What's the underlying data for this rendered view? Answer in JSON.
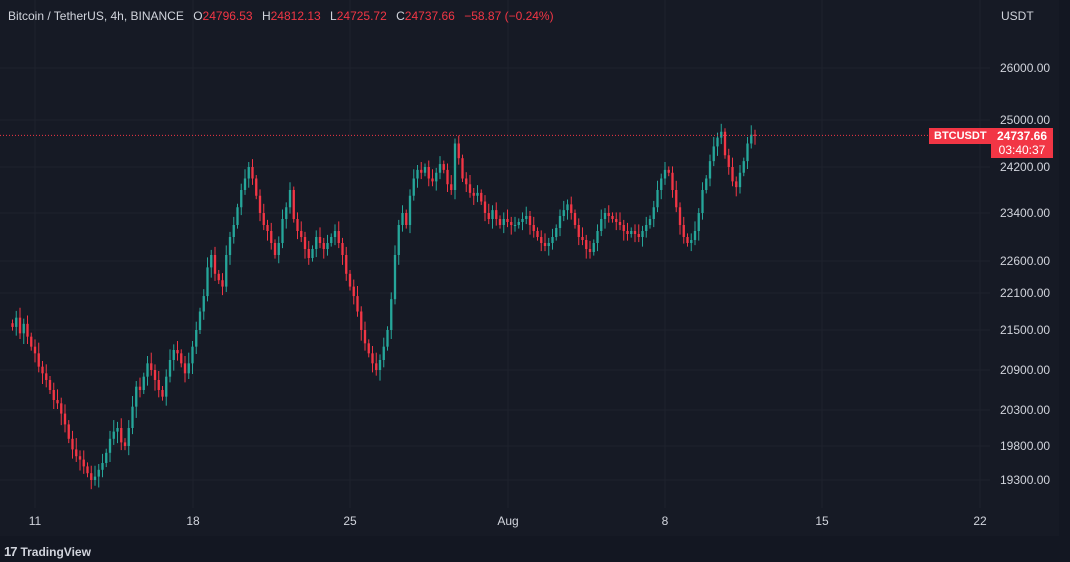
{
  "header": {
    "symbol": "Bitcoin / TetherUS, 4h, BINANCE",
    "open_label": "O",
    "open": "24796.53",
    "high_label": "H",
    "high": "24812.13",
    "low_label": "L",
    "low": "24725.72",
    "close_label": "C",
    "close": "24737.66",
    "change": "−58.87 (−0.24%)"
  },
  "axis": {
    "unit": "USDT",
    "y_ticks": [
      "26000.00",
      "25000.00",
      "24200.00",
      "23400.00",
      "22600.00",
      "22100.00",
      "21500.00",
      "20900.00",
      "20300.00",
      "19800.00",
      "19300.00"
    ],
    "x_ticks": [
      "11",
      "18",
      "25",
      "Aug",
      "8",
      "15",
      "22"
    ]
  },
  "price_badge": {
    "symbol": "BTCUSDT",
    "price": "24737.66",
    "countdown": "03:40:37"
  },
  "footer": {
    "logo": "17",
    "brand": "TradingView"
  },
  "colors": {
    "up": "#26a69a",
    "down": "#f23645",
    "background": "#161a25",
    "text": "#d1d4dc"
  },
  "chart_data": {
    "type": "candlestick",
    "title": "Bitcoin / TetherUS, 4h, BINANCE",
    "y_unit": "USDT",
    "last_price": 24737.66,
    "ylim": [
      18900,
      26900
    ],
    "x_tick_positions": {
      "11": 6,
      "18": 48,
      "25": 90,
      "Aug": 132,
      "8": 174,
      "15": 216,
      "22": 258
    },
    "close_series": [
      21550,
      21700,
      21450,
      21600,
      21400,
      21250,
      21150,
      20950,
      20850,
      20750,
      20600,
      20450,
      20400,
      20250,
      20100,
      19900,
      19750,
      19650,
      19600,
      19500,
      19400,
      19300,
      19350,
      19450,
      19550,
      19700,
      19900,
      20000,
      20050,
      19850,
      19800,
      20050,
      20350,
      20650,
      20600,
      20800,
      21000,
      20900,
      20750,
      20600,
      20500,
      20800,
      21050,
      21200,
      21150,
      21000,
      20850,
      21000,
      21250,
      21500,
      21800,
      22050,
      22500,
      22700,
      22400,
      22300,
      22200,
      22700,
      23000,
      23200,
      23500,
      23800,
      24000,
      24200,
      24000,
      23700,
      23400,
      23200,
      23100,
      22900,
      22700,
      22900,
      23300,
      23500,
      23800,
      23300,
      23100,
      23000,
      22800,
      22650,
      22800,
      23000,
      22900,
      22800,
      22900,
      23000,
      23100,
      22900,
      22700,
      22400,
      22200,
      22050,
      21800,
      21500,
      21300,
      21150,
      21000,
      20900,
      21050,
      21250,
      21500,
      22000,
      22700,
      23200,
      23400,
      23200,
      23700,
      24000,
      24150,
      24100,
      24200,
      24000,
      23950,
      24100,
      24250,
      24150,
      23900,
      23800,
      24600,
      24350,
      24000,
      23900,
      23750,
      23700,
      23750,
      23600,
      23400,
      23300,
      23450,
      23300,
      23200,
      23300,
      23250,
      23200,
      23200,
      23250,
      23300,
      23350,
      23200,
      23100,
      23000,
      22900,
      22850,
      22900,
      23000,
      23150,
      23350,
      23450,
      23550,
      23400,
      23200,
      23000,
      22950,
      22800,
      22750,
      22900,
      23100,
      23300,
      23400,
      23350,
      23300,
      23250,
      23200,
      23100,
      23050,
      23100,
      23050,
      23000,
      23100,
      23200,
      23300,
      23500,
      23800,
      24000,
      24150,
      24100,
      23800,
      23500,
      23200,
      23000,
      22900,
      22950,
      23100,
      23400,
      23800,
      24000,
      24300,
      24550,
      24700,
      24800,
      24400,
      24200,
      23950,
      23850,
      24100,
      24300,
      24600,
      24750,
      24737.66
    ]
  }
}
